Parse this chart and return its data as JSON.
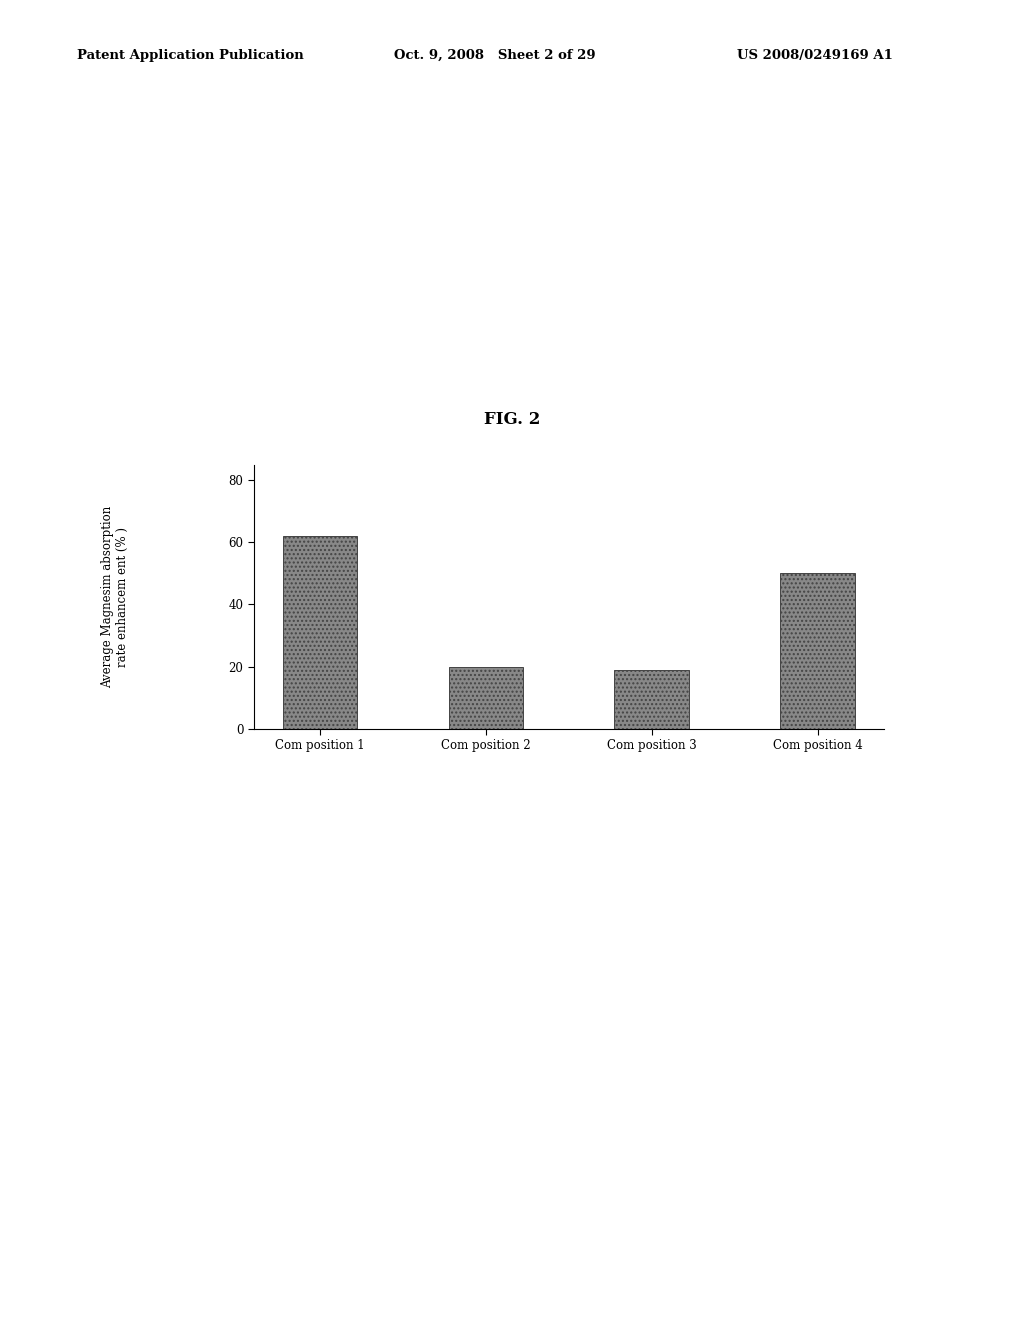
{
  "fig_label": "FIG. 2",
  "categories": [
    "Com position 1",
    "Com position 2",
    "Com position 3",
    "Com position 4"
  ],
  "values": [
    62,
    20,
    19,
    50
  ],
  "bar_color": "#888888",
  "hatch_pattern": "....",
  "ylabel_line1": "Average Magnesim absorption",
  "ylabel_line2": "rate enhancem ent (% )",
  "ylim": [
    0,
    85
  ],
  "yticks": [
    0,
    20,
    40,
    60,
    80
  ],
  "header_left": "Patent Application Publication",
  "header_mid": "Oct. 9, 2008   Sheet 2 of 29",
  "header_right": "US 2008/0249169 A1",
  "background_color": "#ffffff",
  "bar_width": 0.45,
  "bar_edge_color": "#444444"
}
